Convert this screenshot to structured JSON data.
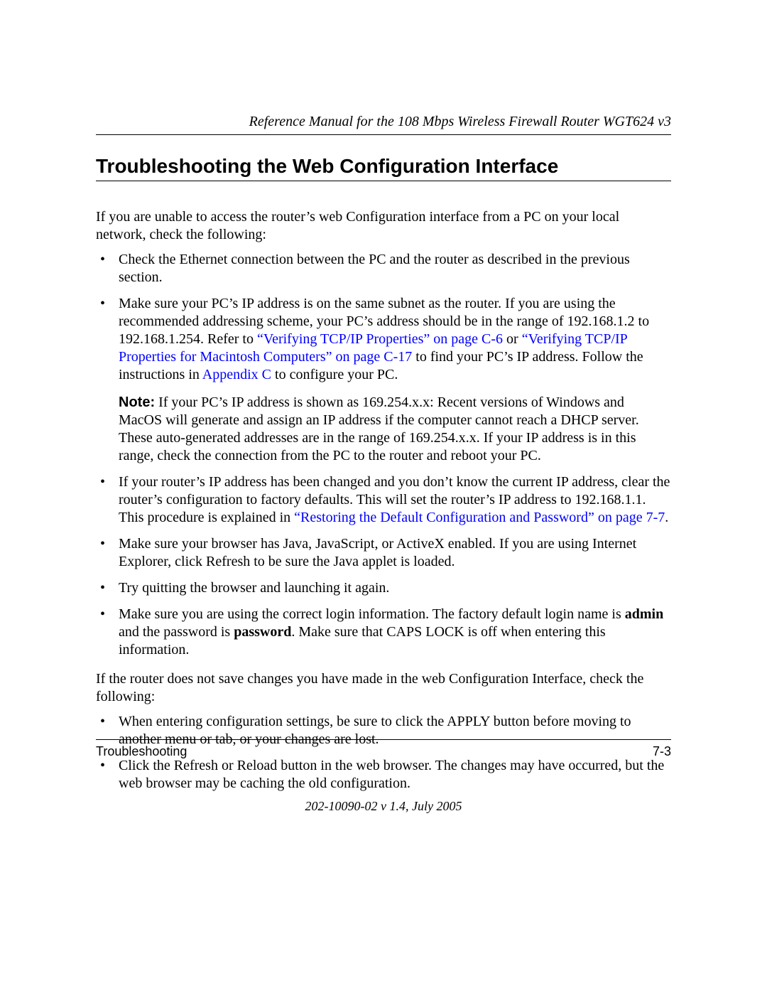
{
  "colors": {
    "link": "#0000ff",
    "text": "#000000",
    "rule": "#000000",
    "background": "#ffffff"
  },
  "fonts": {
    "body_family": "Times New Roman",
    "heading_family": "Arial",
    "body_size_pt": 15,
    "heading_size_pt": 21,
    "running_head_italic": true
  },
  "header": {
    "running_head": "Reference Manual for the 108 Mbps Wireless Firewall Router WGT624 v3"
  },
  "section": {
    "title": "Troubleshooting the Web Configuration Interface",
    "intro": "If you are unable to access the router’s web Configuration interface from a PC on your local network, check the following:",
    "bullets": [
      {
        "parts": [
          {
            "t": "Check the Ethernet connection between the PC and the router as described in the previous section."
          }
        ]
      },
      {
        "parts": [
          {
            "t": "Make sure your PC’s IP address is on the same subnet as the router. If you are using the recommended addressing scheme, your PC’s address should be in the range of 192.168.1.2 to 192.168.1.254. Refer to "
          },
          {
            "t": "“Verifying TCP/IP Properties” on page C-6",
            "link": true
          },
          {
            "t": " or "
          },
          {
            "t": "“Verifying TCP/IP Properties for Macintosh Computers” on page C-17",
            "link": true
          },
          {
            "t": " to find your PC’s IP address. Follow the instructions in "
          },
          {
            "t": "Appendix C",
            "link": true
          },
          {
            "t": " to configure your PC."
          }
        ],
        "note": {
          "label": "Note:",
          "text": " If your PC’s IP address is shown as 169.254.x.x: Recent versions of Windows and MacOS will generate and assign an IP address if the computer cannot reach a DHCP server. These auto-generated addresses are in the range of 169.254.x.x. If your IP address is in this range, check the connection from the PC to the router and reboot your PC."
        }
      },
      {
        "parts": [
          {
            "t": "If your router’s IP address has been changed and you don’t know the current IP address, clear the router’s configuration to factory defaults. This will set the router’s IP address to 192.168.1.1. This procedure is explained in "
          },
          {
            "t": "“Restoring the Default Configuration and Password” on page 7-7",
            "link": true
          },
          {
            "t": "."
          }
        ]
      },
      {
        "parts": [
          {
            "t": "Make sure your browser has Java, JavaScript, or ActiveX enabled. If you are using Internet Explorer, click Refresh to be sure the Java applet is loaded."
          }
        ]
      },
      {
        "parts": [
          {
            "t": "Try quitting the browser and launching it again."
          }
        ]
      },
      {
        "parts": [
          {
            "t": "Make sure you are using the correct login information. The factory default login name is "
          },
          {
            "t": "admin",
            "bold": true
          },
          {
            "t": " and the password is "
          },
          {
            "t": "password",
            "bold": true
          },
          {
            "t": ". Make sure that CAPS LOCK is off when entering this information."
          }
        ]
      }
    ],
    "followup": "If the router does not save changes you have made in the web Configuration Interface, check the following:",
    "bullets2": [
      {
        "parts": [
          {
            "t": "When entering configuration settings, be sure to click the APPLY button before moving to another menu or tab, or your changes are lost."
          }
        ]
      },
      {
        "parts": [
          {
            "t": "Click the Refresh or Reload button in the web browser. The changes may have occurred, but the web browser may be caching the old configuration."
          }
        ]
      }
    ]
  },
  "footer": {
    "left": "Troubleshooting",
    "right": "7-3",
    "version": "202-10090-02 v 1.4, July 2005"
  }
}
